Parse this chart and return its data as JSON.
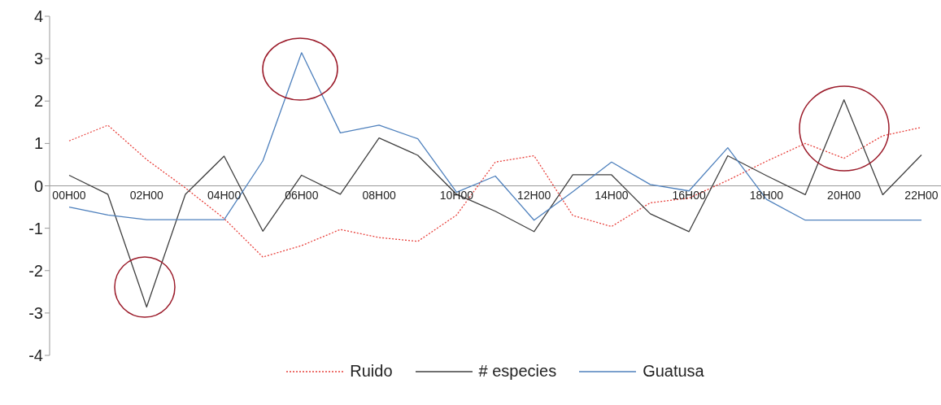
{
  "chart_data": {
    "type": "line",
    "categories": [
      "00H00",
      null,
      "02H00",
      null,
      "04H00",
      null,
      "06H00",
      null,
      "08H00",
      null,
      "10H00",
      null,
      "12H00",
      null,
      "14H00",
      null,
      "16H00",
      null,
      "18H00",
      null,
      "20H00",
      null,
      "22H00"
    ],
    "series": [
      {
        "name": "Ruido",
        "color": "#e8413c",
        "line_style": "dotted",
        "values": [
          1.06,
          1.43,
          0.62,
          -0.05,
          -0.77,
          -1.68,
          -1.41,
          -1.03,
          -1.22,
          -1.31,
          -0.69,
          0.56,
          0.71,
          -0.7,
          -0.96,
          -0.4,
          -0.29,
          0.13,
          0.58,
          1.0,
          0.65,
          1.18,
          1.38
        ]
      },
      {
        "name": "# especies",
        "color": "#404040",
        "line_style": "solid",
        "values": [
          0.25,
          -0.2,
          -2.86,
          -0.2,
          0.7,
          -1.07,
          0.25,
          -0.2,
          1.13,
          0.72,
          -0.2,
          -0.6,
          -1.08,
          0.26,
          0.26,
          -0.66,
          -1.08,
          0.71,
          0.24,
          -0.21,
          2.03,
          -0.21,
          0.73
        ]
      },
      {
        "name": "Guatusa",
        "color": "#4f81bd",
        "line_style": "solid",
        "values": [
          -0.5,
          -0.69,
          -0.8,
          -0.8,
          -0.8,
          0.59,
          3.14,
          1.25,
          1.43,
          1.11,
          -0.15,
          0.23,
          -0.81,
          -0.14,
          0.56,
          0.03,
          -0.12,
          0.9,
          -0.32,
          -0.81,
          -0.81,
          -0.81,
          -0.81
        ]
      }
    ],
    "ylim": [
      -4,
      4
    ],
    "yticks": [
      -4,
      -3,
      -2,
      -1,
      0,
      1,
      2,
      3,
      4
    ],
    "legend": "bottom",
    "marker": "none"
  }
}
